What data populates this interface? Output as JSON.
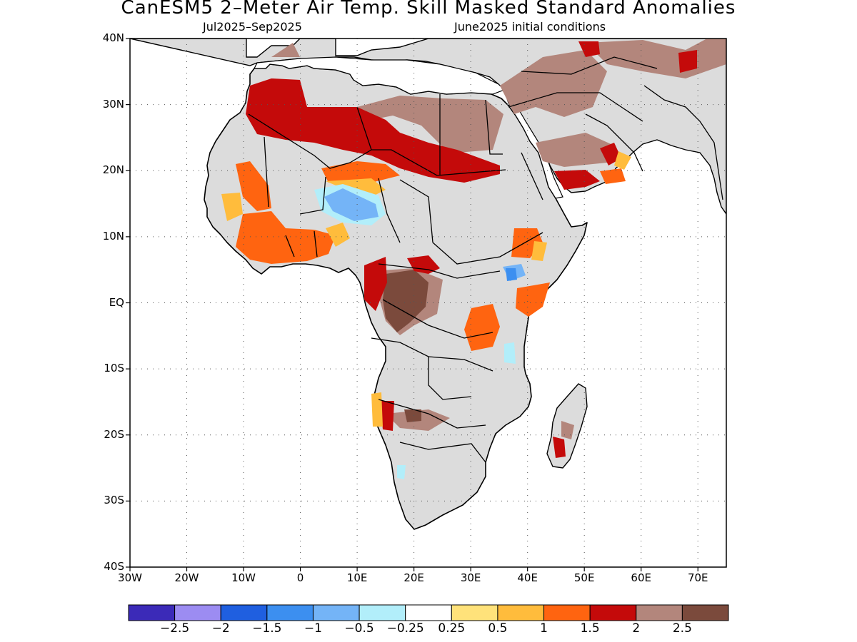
{
  "title": "CanESM5 2–Meter Air Temp. Skill Masked Standard Anomalies",
  "period": "Jul2025–Sep2025",
  "init": "June2025 initial conditions",
  "lat_labels": [
    "40N",
    "30N",
    "20N",
    "10N",
    "EQ",
    "10S",
    "20S",
    "30S",
    "40S"
  ],
  "lon_labels": [
    "30W",
    "20W",
    "10W",
    "0",
    "10E",
    "20E",
    "30E",
    "40E",
    "50E",
    "60E",
    "70E"
  ],
  "colorbar": {
    "colors": [
      "#3b2ab8",
      "#9c8cf2",
      "#1f5fe0",
      "#3c8ff0",
      "#74b4f7",
      "#b2eefa",
      "#ffffff",
      "#ffe27a",
      "#ffbc3c",
      "#ff6410",
      "#c40a0a",
      "#b3867c",
      "#7b4a3c"
    ],
    "labels": [
      "−2.5",
      "−2",
      "−1.5",
      "−1",
      "−0.5",
      "−0.25",
      "0.25",
      "0.5",
      "1",
      "1.5",
      "2",
      "2.5"
    ]
  },
  "map_colors": {
    "land_masked": "#dcdcdc",
    "ocean": "#ffffff",
    "coast": "#000000"
  }
}
